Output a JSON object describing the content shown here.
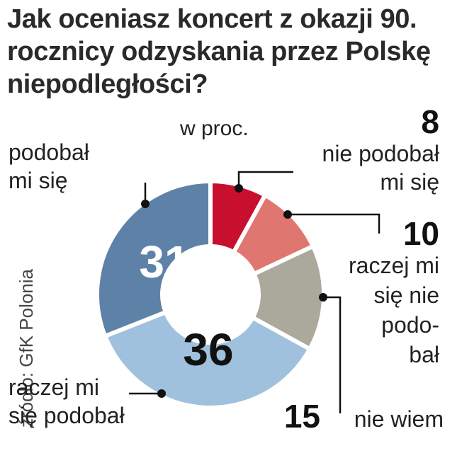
{
  "chart_data": {
    "type": "pie",
    "title": "Jak oceniasz koncert z okazji 90. rocznicy odzyskania przez Polskę niepodległości?",
    "unit": "w proc.",
    "source": "źródło: GfK Polonia",
    "slices": [
      {
        "value": 8,
        "value_label": "8",
        "label_lines": [
          "nie podobał",
          "mi się"
        ],
        "color": "#c8102e"
      },
      {
        "value": 10,
        "value_label": "10",
        "label_lines": [
          "raczej mi",
          "się nie",
          "podo-",
          "bał"
        ],
        "color": "#e07670"
      },
      {
        "value": 15,
        "value_label": "15",
        "label_lines": [
          "nie wiem"
        ],
        "color": "#aaa99b"
      },
      {
        "value": 36,
        "value_label": "36",
        "label_lines": [
          "raczej mi",
          "się podobał"
        ],
        "color": "#9fc1dd"
      },
      {
        "value": 31,
        "value_label": "31",
        "label_lines": [
          "podobał",
          "mi się"
        ],
        "color": "#5e82a7"
      }
    ]
  }
}
